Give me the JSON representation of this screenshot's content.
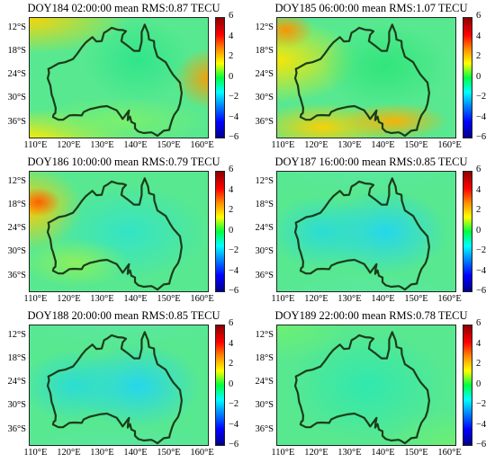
{
  "figure": {
    "panels": [
      {
        "title": "DOY184 02:00:00 mean RMS:0.87 TECU",
        "field": "warm"
      },
      {
        "title": "DOY185 06:00:00 mean RMS:1.07 TECU",
        "field": "warmer"
      },
      {
        "title": "DOY186 10:00:00 mean RMS:0.79 TECU",
        "field": "west-warm"
      },
      {
        "title": "DOY187 16:00:00 mean RMS:0.85 TECU",
        "field": "cool"
      },
      {
        "title": "DOY188 20:00:00 mean RMS:0.85 TECU",
        "field": "cool"
      },
      {
        "title": "DOY189 22:00:00 mean RMS:0.78 TECU",
        "field": "neutral"
      }
    ],
    "lat_ticks": [
      "12°S",
      "18°S",
      "24°S",
      "30°S",
      "36°S"
    ],
    "lon_ticks": [
      "110°E",
      "120°E",
      "130°E",
      "140°E",
      "150°E",
      "160°E"
    ],
    "colorbar_ticks": [
      "6",
      "4",
      "2",
      "0",
      "−2",
      "−4",
      "−6"
    ],
    "colormap": [
      "#00008b",
      "#0000ff",
      "#0080ff",
      "#00ffff",
      "#00ff40",
      "#ffff00",
      "#ff8c00",
      "#ff0000",
      "#8b0000"
    ],
    "coastline_color": "#1a3d1a"
  },
  "chart_data": {
    "type": "heatmap",
    "x_range": [
      108,
      162
    ],
    "y_range": [
      -40,
      -9
    ],
    "color_range": [
      -6,
      6
    ],
    "panels": [
      {
        "title": "DOY184 02:00:00 mean RMS:0.87 TECU",
        "mean_rms": 0.87
      },
      {
        "title": "DOY185 06:00:00 mean RMS:1.07 TECU",
        "mean_rms": 1.07
      },
      {
        "title": "DOY186 10:00:00 mean RMS:0.79 TECU",
        "mean_rms": 0.79
      },
      {
        "title": "DOY187 16:00:00 mean RMS:0.85 TECU",
        "mean_rms": 0.85
      },
      {
        "title": "DOY188 20:00:00 mean RMS:0.85 TECU",
        "mean_rms": 0.85
      },
      {
        "title": "DOY189 22:00:00 mean RMS:0.78 TECU",
        "mean_rms": 0.78
      }
    ]
  }
}
